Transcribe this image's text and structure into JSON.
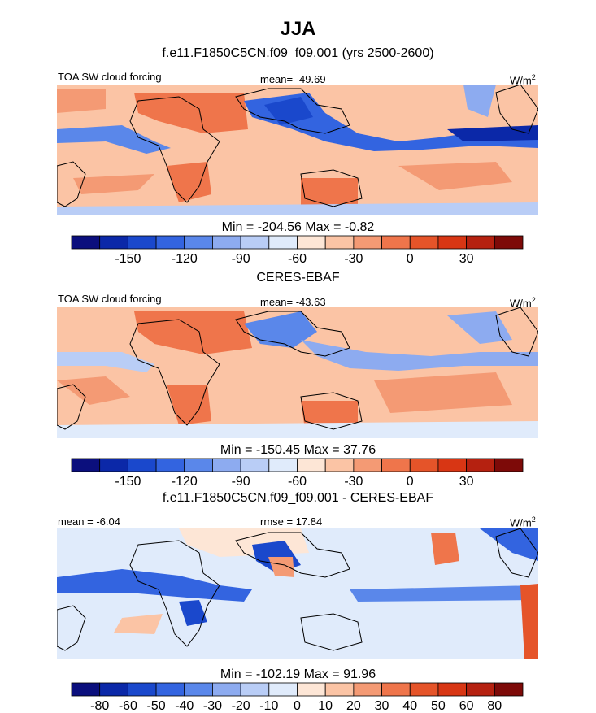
{
  "figure": {
    "title": "JJA",
    "colors": {
      "palette_main": [
        "#0b0f7d",
        "#0b28a8",
        "#1a48cc",
        "#3364e0",
        "#5a87ea",
        "#8dabf0",
        "#b9cdf6",
        "#e0ebfb",
        "#fde6d6",
        "#fbc4a5",
        "#f49a74",
        "#ef754b",
        "#e55429",
        "#d83614",
        "#b52110",
        "#7d0a08"
      ],
      "palette_diff": [
        "#0b0f7d",
        "#0b28a8",
        "#1a48cc",
        "#3364e0",
        "#5a87ea",
        "#8dabf0",
        "#b9cdf6",
        "#e0ebfb",
        "#fde6d6",
        "#fbc4a5",
        "#f49a74",
        "#ef754b",
        "#e55429",
        "#d83614",
        "#b52110",
        "#7d0a08"
      ]
    }
  },
  "panels": [
    {
      "subtitle": "f.e11.F1850C5CN.f09_f09.001 (yrs 2500-2600)",
      "left_label": "TOA SW cloud forcing",
      "center_label": "mean= -49.69",
      "units": "W/m",
      "units_sup": "2",
      "min_max": "Min = -204.56 Max =  -0.82"
    },
    {
      "subtitle": "CERES-EBAF",
      "left_label": "TOA SW cloud forcing",
      "center_label": "mean= -43.63",
      "units": "W/m",
      "units_sup": "2",
      "min_max": "Min = -150.45 Max =  37.76"
    },
    {
      "subtitle": "f.e11.F1850C5CN.f09_f09.001 - CERES-EBAF",
      "left_label": "mean =  -6.04",
      "center_label": "rmse =  17.84",
      "units": "W/m",
      "units_sup": "2",
      "min_max": "Min = -102.19 Max =  91.96"
    }
  ],
  "chart_data": [
    {
      "type": "heatmap",
      "title": "f.e11.F1850C5CN.f09_f09.001 (yrs 2500-2600)",
      "variable": "TOA SW cloud forcing",
      "units": "W/m2",
      "mean": -49.69,
      "min": -204.56,
      "max": -0.82,
      "colorbar_ticks": [
        -150,
        -120,
        -90,
        -60,
        -30,
        0,
        30
      ],
      "colorbar_levels": [
        -165,
        -150,
        -135,
        -120,
        -105,
        -90,
        -75,
        -60,
        -45,
        -30,
        -15,
        0,
        15,
        30,
        45
      ]
    },
    {
      "type": "heatmap",
      "title": "CERES-EBAF",
      "variable": "TOA SW cloud forcing",
      "units": "W/m2",
      "mean": -43.63,
      "min": -150.45,
      "max": 37.76,
      "colorbar_ticks": [
        -150,
        -120,
        -90,
        -60,
        -30,
        0,
        30
      ],
      "colorbar_levels": [
        -165,
        -150,
        -135,
        -120,
        -105,
        -90,
        -75,
        -60,
        -45,
        -30,
        -15,
        0,
        15,
        30,
        45
      ]
    },
    {
      "type": "heatmap",
      "title": "f.e11.F1850C5CN.f09_f09.001 - CERES-EBAF",
      "units": "W/m2",
      "mean": -6.04,
      "rmse": 17.84,
      "min": -102.19,
      "max": 91.96,
      "colorbar_ticks": [
        -80,
        -60,
        -50,
        -40,
        -30,
        -20,
        -10,
        0,
        10,
        20,
        30,
        40,
        50,
        60,
        80
      ],
      "colorbar_levels": [
        -80,
        -60,
        -50,
        -40,
        -30,
        -20,
        -10,
        0,
        10,
        20,
        30,
        40,
        50,
        60,
        80
      ]
    }
  ]
}
